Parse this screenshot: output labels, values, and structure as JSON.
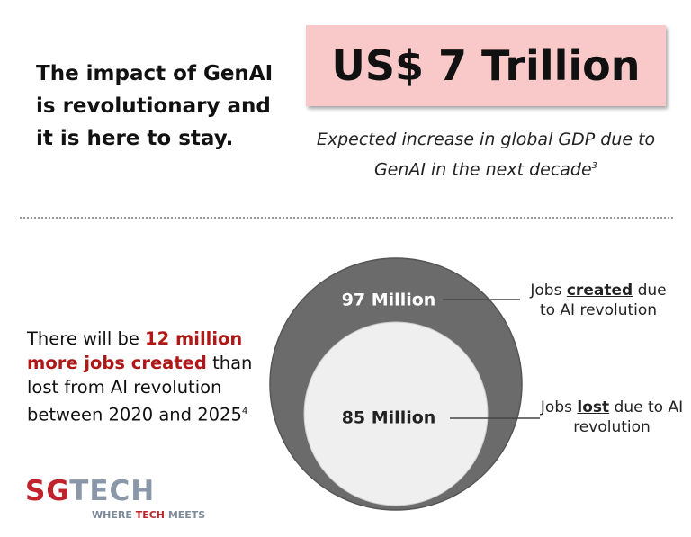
{
  "headline": {
    "lines": [
      "The impact of GenAI",
      "is revolutionary and",
      "it is here to stay."
    ]
  },
  "gdp": {
    "amount": "US$ 7 Trillion",
    "caption_lines": [
      "Expected increase in global GDP due to",
      "GenAI in the next decade"
    ],
    "footnote": "3"
  },
  "jobs": {
    "prefix": "There will be",
    "highlight": "12 million more jobs created",
    "suffix": "than lost from AI revolution between 2020 and 2025",
    "footnote": "4"
  },
  "circles": [
    {
      "label": "97 Million",
      "note_pre": "Jobs",
      "note_emph": "created",
      "note_post": "due to AI revolution"
    },
    {
      "label": "85 Million",
      "note_pre": "Jobs",
      "note_emph": "lost",
      "note_post": "due to AI revolution"
    }
  ],
  "logo": {
    "brand_a": "SG",
    "brand_b": "TECH",
    "tag_a": "WHERE",
    "tag_b": "TECH",
    "tag_c": "MEETS"
  }
}
